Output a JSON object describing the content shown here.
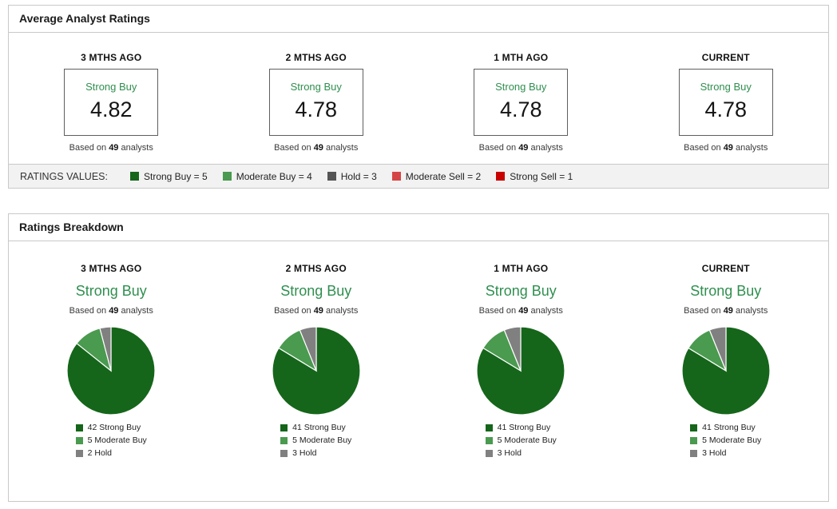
{
  "average_panel": {
    "title": "Average Analyst Ratings",
    "columns": [
      {
        "period": "3 MTHS AGO",
        "rating": "Strong Buy",
        "value": "4.82",
        "based_prefix": "Based on ",
        "analyst_count": "49",
        "based_suffix": " analysts"
      },
      {
        "period": "2 MTHS AGO",
        "rating": "Strong Buy",
        "value": "4.78",
        "based_prefix": "Based on ",
        "analyst_count": "49",
        "based_suffix": " analysts"
      },
      {
        "period": "1 MTH AGO",
        "rating": "Strong Buy",
        "value": "4.78",
        "based_prefix": "Based on ",
        "analyst_count": "49",
        "based_suffix": " analysts"
      },
      {
        "period": "CURRENT",
        "rating": "Strong Buy",
        "value": "4.78",
        "based_prefix": "Based on ",
        "analyst_count": "49",
        "based_suffix": " analysts"
      }
    ],
    "legend": {
      "label": "RATINGS VALUES:",
      "items": [
        {
          "label": "Strong Buy = 5",
          "color": "#15661a"
        },
        {
          "label": "Moderate Buy = 4",
          "color": "#4a9a4f"
        },
        {
          "label": "Hold = 3",
          "color": "#555555"
        },
        {
          "label": "Moderate Sell = 2",
          "color": "#d64545"
        },
        {
          "label": "Strong Sell = 1",
          "color": "#c80000"
        }
      ]
    }
  },
  "breakdown_panel": {
    "title": "Ratings Breakdown",
    "columns": [
      {
        "period": "3 MTHS AGO",
        "rating": "Strong Buy",
        "based_prefix": "Based on ",
        "analyst_count": "49",
        "based_suffix": " analysts",
        "slices": [
          {
            "label": "42 Strong Buy",
            "value": 42,
            "color": "#15661a"
          },
          {
            "label": "5 Moderate Buy",
            "value": 5,
            "color": "#4a9a4f"
          },
          {
            "label": "2 Hold",
            "value": 2,
            "color": "#808080"
          }
        ]
      },
      {
        "period": "2 MTHS AGO",
        "rating": "Strong Buy",
        "based_prefix": "Based on ",
        "analyst_count": "49",
        "based_suffix": " analysts",
        "slices": [
          {
            "label": "41 Strong Buy",
            "value": 41,
            "color": "#15661a"
          },
          {
            "label": "5 Moderate Buy",
            "value": 5,
            "color": "#4a9a4f"
          },
          {
            "label": "3 Hold",
            "value": 3,
            "color": "#808080"
          }
        ]
      },
      {
        "period": "1 MTH AGO",
        "rating": "Strong Buy",
        "based_prefix": "Based on ",
        "analyst_count": "49",
        "based_suffix": " analysts",
        "slices": [
          {
            "label": "41 Strong Buy",
            "value": 41,
            "color": "#15661a"
          },
          {
            "label": "5 Moderate Buy",
            "value": 5,
            "color": "#4a9a4f"
          },
          {
            "label": "3 Hold",
            "value": 3,
            "color": "#808080"
          }
        ]
      },
      {
        "period": "CURRENT",
        "rating": "Strong Buy",
        "based_prefix": "Based on ",
        "analyst_count": "49",
        "based_suffix": " analysts",
        "slices": [
          {
            "label": "41 Strong Buy",
            "value": 41,
            "color": "#15661a"
          },
          {
            "label": "5 Moderate Buy",
            "value": 5,
            "color": "#4a9a4f"
          },
          {
            "label": "3 Hold",
            "value": 3,
            "color": "#808080"
          }
        ]
      }
    ]
  },
  "chart_data": [
    {
      "type": "pie",
      "title": "3 MTHS AGO",
      "consensus": "Strong Buy",
      "average_rating": 4.82,
      "total_analysts": 49,
      "labels": [
        "Strong Buy",
        "Moderate Buy",
        "Hold"
      ],
      "values": [
        42,
        5,
        2
      ],
      "colors": [
        "#15661a",
        "#4a9a4f",
        "#808080"
      ],
      "legend_position": "bottom",
      "start_angle_deg": 0,
      "direction": "clockwise"
    },
    {
      "type": "pie",
      "title": "2 MTHS AGO",
      "consensus": "Strong Buy",
      "average_rating": 4.78,
      "total_analysts": 49,
      "labels": [
        "Strong Buy",
        "Moderate Buy",
        "Hold"
      ],
      "values": [
        41,
        5,
        3
      ],
      "colors": [
        "#15661a",
        "#4a9a4f",
        "#808080"
      ],
      "legend_position": "bottom",
      "start_angle_deg": 0,
      "direction": "clockwise"
    },
    {
      "type": "pie",
      "title": "1 MTH AGO",
      "consensus": "Strong Buy",
      "average_rating": 4.78,
      "total_analysts": 49,
      "labels": [
        "Strong Buy",
        "Moderate Buy",
        "Hold"
      ],
      "values": [
        41,
        5,
        3
      ],
      "colors": [
        "#15661a",
        "#4a9a4f",
        "#808080"
      ],
      "legend_position": "bottom",
      "start_angle_deg": 0,
      "direction": "clockwise"
    },
    {
      "type": "pie",
      "title": "CURRENT",
      "consensus": "Strong Buy",
      "average_rating": 4.78,
      "total_analysts": 49,
      "labels": [
        "Strong Buy",
        "Moderate Buy",
        "Hold"
      ],
      "values": [
        41,
        5,
        3
      ],
      "colors": [
        "#15661a",
        "#4a9a4f",
        "#808080"
      ],
      "legend_position": "bottom",
      "start_angle_deg": 0,
      "direction": "clockwise"
    }
  ]
}
